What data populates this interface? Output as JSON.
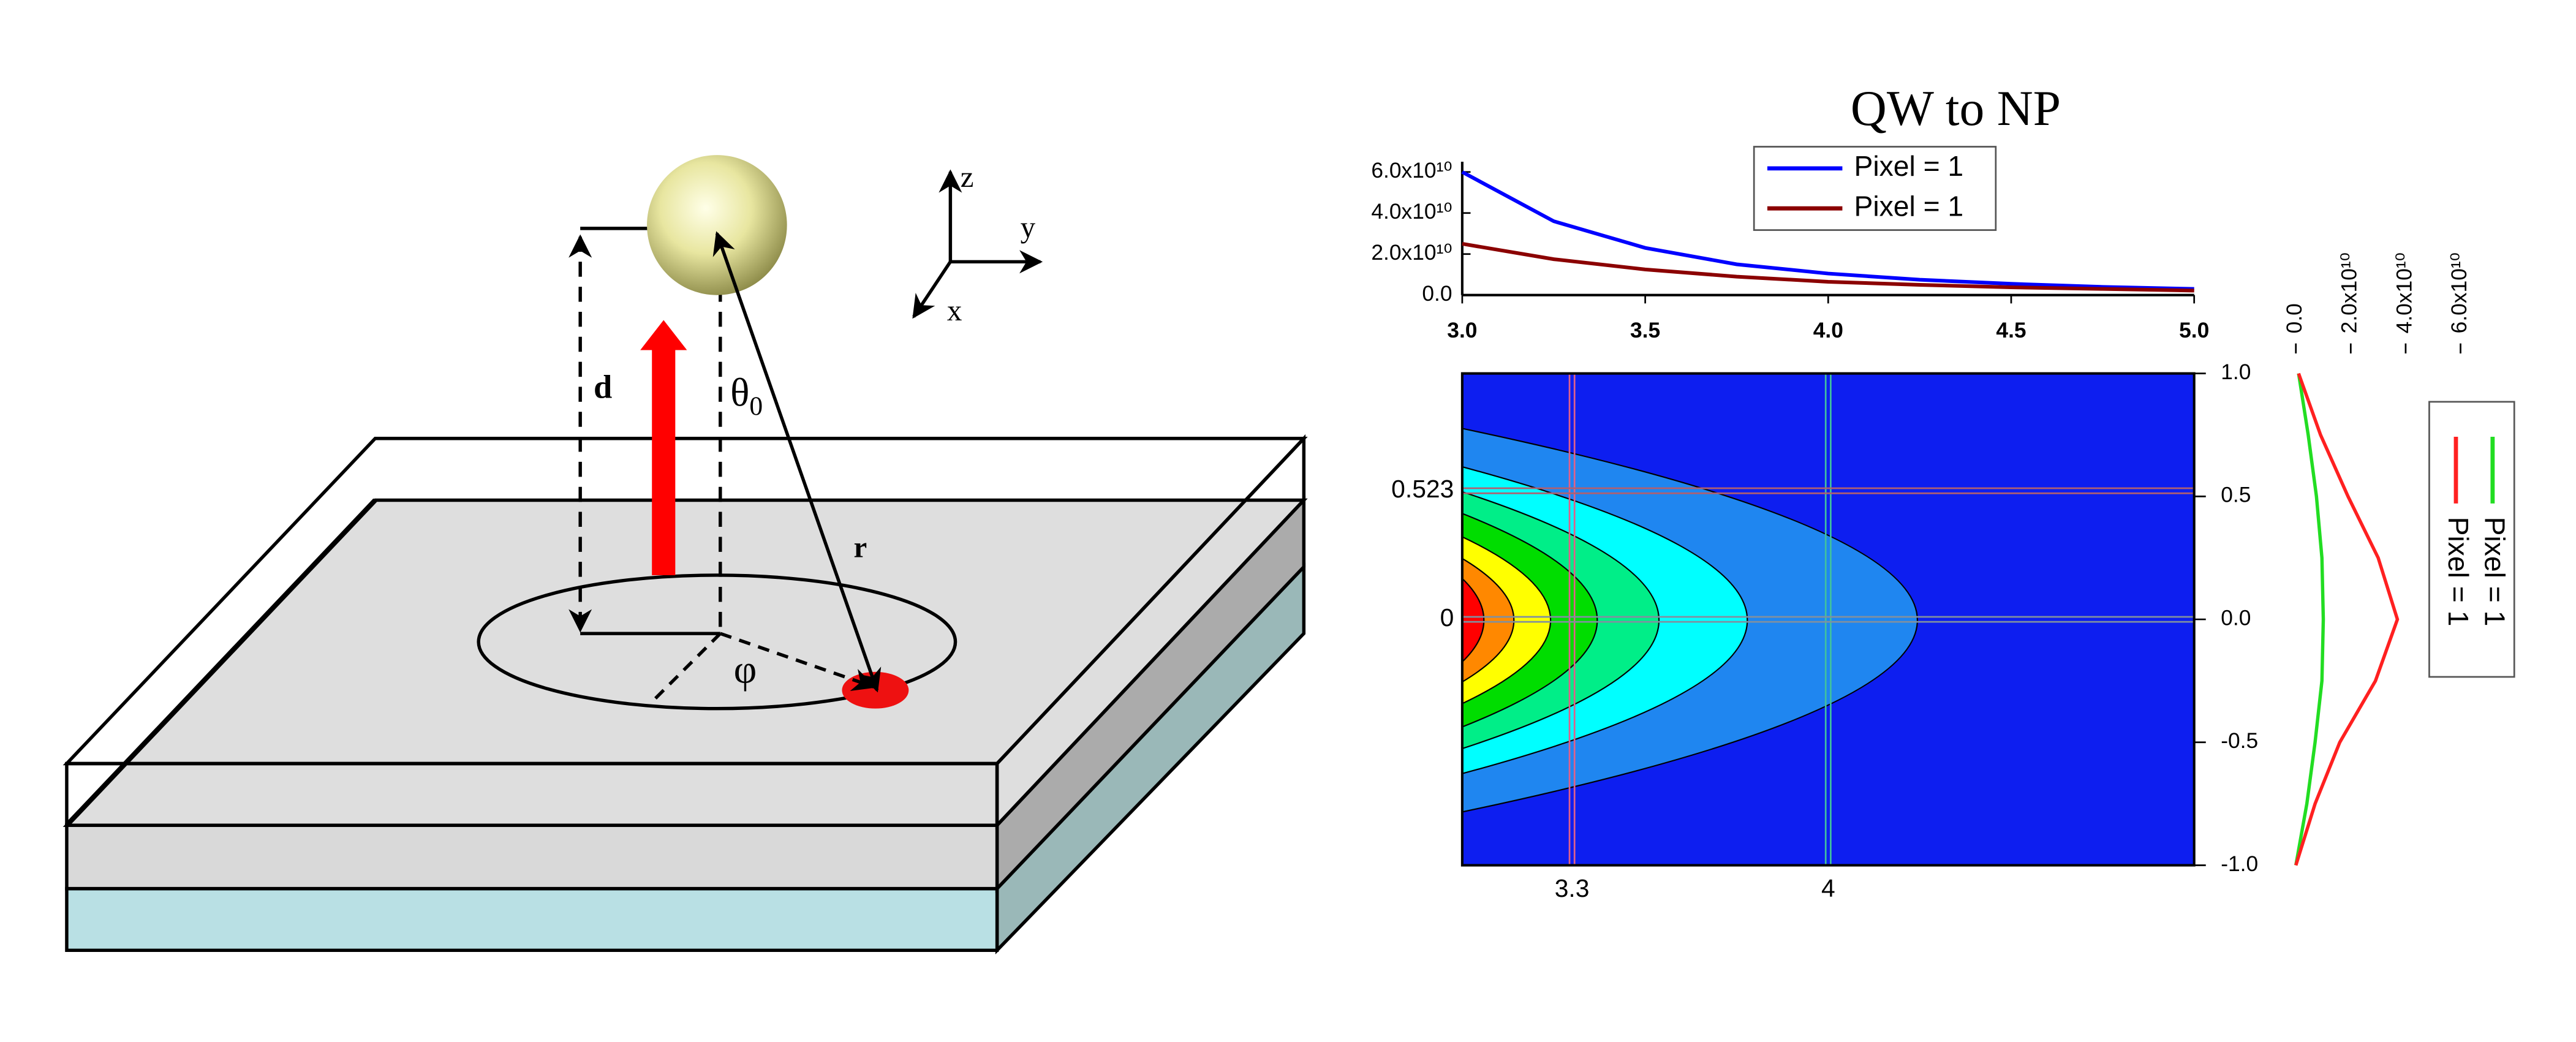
{
  "diagram": {
    "labels": {
      "d": "d",
      "theta": "θ",
      "theta_sub": "0",
      "r": "r",
      "phi": "φ",
      "z": "z",
      "y": "y",
      "x": "x"
    }
  },
  "chart_data": [
    {
      "type": "line",
      "title": "QW to NP",
      "x": [
        3,
        3.25,
        3.5,
        3.75,
        4,
        4.25,
        4.5,
        4.75,
        5
      ],
      "series": [
        {
          "name": "Pixel = 1",
          "color": "#0000ff",
          "values": [
            60000000000,
            36000000000,
            23000000000,
            15000000000,
            10500000000,
            7500000000,
            5500000000,
            4000000000,
            3000000000
          ]
        },
        {
          "name": "Pixel = 1",
          "color": "#8b0000",
          "values": [
            25000000000,
            17500000000,
            12500000000,
            9000000000,
            6500000000,
            5000000000,
            3800000000,
            3000000000,
            2200000000
          ]
        }
      ],
      "xlim": [
        3,
        5
      ],
      "xticks": [
        {
          "value": 3,
          "label": "3.0"
        },
        3.5,
        {
          "value": 4,
          "label": "4.0"
        },
        4.5,
        {
          "value": 5,
          "label": "5.0"
        }
      ],
      "ylim": [
        0,
        65000000000
      ],
      "yticks": [
        {
          "value": 0,
          "label": "0.0"
        },
        {
          "value": 20000000000,
          "label": "2.0x10¹⁰"
        },
        {
          "value": 40000000000,
          "label": "4.0x10¹⁰"
        },
        {
          "value": 60000000000,
          "label": "6.0x10¹⁰"
        }
      ],
      "legend": "top-center"
    },
    {
      "type": "contour",
      "xlim": [
        3,
        5
      ],
      "ylim": [
        -1,
        1
      ],
      "yticks": [
        {
          "value": 1,
          "label": "1.0"
        },
        0.5,
        {
          "value": 0,
          "label": "0.0"
        },
        -0.5,
        {
          "value": -1,
          "label": "-1.0"
        }
      ],
      "x_cursors": [
        3.3,
        4
      ],
      "y_cursors": [
        0.523,
        0
      ]
    },
    {
      "type": "line",
      "orientation": "horizontal",
      "y": [
        -1,
        -0.75,
        -0.5,
        -0.25,
        0,
        0.25,
        0.5,
        0.75,
        1
      ],
      "series": [
        {
          "name": "Pixel = 1",
          "color": "#22dd22",
          "values": [
            0,
            4000000000,
            7000000000,
            9500000000,
            10000000000,
            9500000000,
            7500000000,
            4500000000,
            1000000000
          ]
        },
        {
          "name": "Pixel = 1",
          "color": "#ff2020",
          "values": [
            0,
            7000000000,
            16000000000,
            29000000000,
            37000000000,
            30000000000,
            19000000000,
            9000000000,
            1000000000
          ]
        }
      ],
      "xlim": [
        0,
        65000000000
      ],
      "xticks": [
        {
          "value": 0,
          "label": "0.0"
        },
        {
          "value": 20000000000,
          "label": "2.0x10¹⁰"
        },
        {
          "value": 40000000000,
          "label": "4.0x10¹⁰"
        },
        {
          "value": 60000000000,
          "label": "6.0x10¹⁰"
        }
      ],
      "ylim": [
        -1,
        1
      ],
      "legend": "right"
    }
  ]
}
